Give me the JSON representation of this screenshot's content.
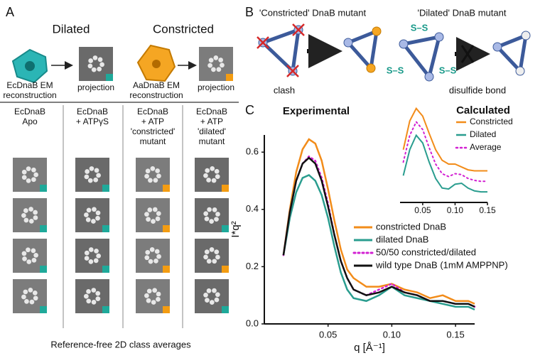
{
  "panel_a": {
    "label": "A",
    "titles": [
      "Dilated",
      "Constricted"
    ],
    "reconstruction_captions": [
      [
        "EcDnaB EM",
        "reconstruction"
      ],
      [
        "AaDnaB EM",
        "reconstruction"
      ]
    ],
    "projection_captions": [
      "projection",
      "projection"
    ],
    "column_headers": [
      [
        "EcDnaB",
        "Apo"
      ],
      [
        "EcDnaB",
        "+ ATPγS"
      ],
      [
        "EcDnaB",
        "+ ATP",
        "'constricted'",
        "mutant"
      ],
      [
        "EcDnaB",
        "+ ATP",
        "'dilated'",
        "mutant"
      ]
    ],
    "footer": "Reference-free 2D class averages"
  },
  "panel_b": {
    "label": "B",
    "titles": [
      "'Constricted' DnaB mutant",
      "'Dilated' DnaB mutant"
    ],
    "captions": [
      "clash",
      "disulfide bond"
    ],
    "disulfide_labels": [
      "S–S",
      "S–S",
      "S–S"
    ]
  },
  "panel_c": {
    "label": "C"
  },
  "chart_data": [
    {
      "type": "line",
      "title": "Experimental",
      "xlabel": "q [Å⁻¹]",
      "ylabel": "I*q²",
      "x": [
        0.015,
        0.02,
        0.025,
        0.03,
        0.035,
        0.04,
        0.045,
        0.05,
        0.055,
        0.06,
        0.065,
        0.07,
        0.08,
        0.09,
        0.1,
        0.11,
        0.12,
        0.13,
        0.14,
        0.15,
        0.16,
        0.165
      ],
      "series": [
        {
          "name": "constricted DnaB",
          "color": "#f28c1a",
          "values": [
            0.24,
            0.4,
            0.53,
            0.61,
            0.645,
            0.63,
            0.57,
            0.47,
            0.36,
            0.26,
            0.19,
            0.16,
            0.13,
            0.13,
            0.14,
            0.12,
            0.11,
            0.09,
            0.1,
            0.08,
            0.08,
            0.07
          ]
        },
        {
          "name": "dilated DnaB",
          "color": "#2a9d8f",
          "values": [
            0.24,
            0.37,
            0.46,
            0.51,
            0.52,
            0.5,
            0.45,
            0.37,
            0.27,
            0.18,
            0.12,
            0.09,
            0.08,
            0.1,
            0.13,
            0.1,
            0.09,
            0.08,
            0.07,
            0.06,
            0.06,
            0.05
          ]
        },
        {
          "name": "50/50 constricted/dilated",
          "color": "#d21fd2",
          "style": "dotted",
          "values": [
            0.24,
            0.39,
            0.5,
            0.56,
            0.585,
            0.57,
            0.51,
            0.42,
            0.31,
            0.22,
            0.16,
            0.12,
            0.1,
            0.12,
            0.14,
            0.11,
            0.1,
            0.08,
            0.08,
            0.07,
            0.07,
            0.06
          ]
        },
        {
          "name": "wild type DnaB (1mM AMPPNP)",
          "color": "#111111",
          "values": [
            0.24,
            0.39,
            0.5,
            0.56,
            0.58,
            0.56,
            0.5,
            0.41,
            0.31,
            0.22,
            0.16,
            0.12,
            0.1,
            0.11,
            0.13,
            0.11,
            0.1,
            0.08,
            0.08,
            0.07,
            0.07,
            0.06
          ]
        }
      ],
      "xlim": [
        0,
        0.165
      ],
      "ylim": [
        0,
        0.66
      ],
      "xticks": [
        0.05,
        {
          "value": 0.1,
          "label": "0.10"
        },
        0.15
      ],
      "yticks": [
        {
          "value": 0,
          "label": "0.0"
        },
        0.2,
        0.4,
        0.6
      ],
      "legend": "right"
    },
    {
      "type": "line",
      "title": "Calculated",
      "x": [
        0.02,
        0.03,
        0.04,
        0.05,
        0.06,
        0.07,
        0.08,
        0.09,
        0.1,
        0.11,
        0.12,
        0.13,
        0.14,
        0.15
      ],
      "series": [
        {
          "name": "Constricted",
          "color": "#f28c1a",
          "values": [
            0.55,
            0.85,
            0.98,
            0.9,
            0.72,
            0.55,
            0.44,
            0.4,
            0.4,
            0.37,
            0.34,
            0.33,
            0.33,
            0.33
          ]
        },
        {
          "name": "Dilated",
          "color": "#2a9d8f",
          "values": [
            0.28,
            0.55,
            0.7,
            0.62,
            0.42,
            0.25,
            0.15,
            0.14,
            0.19,
            0.2,
            0.15,
            0.12,
            0.11,
            0.11
          ]
        },
        {
          "name": "Average",
          "color": "#d21fd2",
          "style": "dotted",
          "values": [
            0.42,
            0.7,
            0.84,
            0.76,
            0.57,
            0.4,
            0.3,
            0.27,
            0.3,
            0.29,
            0.25,
            0.23,
            0.22,
            0.22
          ]
        }
      ],
      "xlim": [
        0.015,
        0.15
      ],
      "ylim": [
        0,
        1
      ],
      "xticks": [
        0.05,
        {
          "value": 0.1,
          "label": "0.10"
        },
        0.15
      ],
      "legend": "upper right"
    }
  ]
}
